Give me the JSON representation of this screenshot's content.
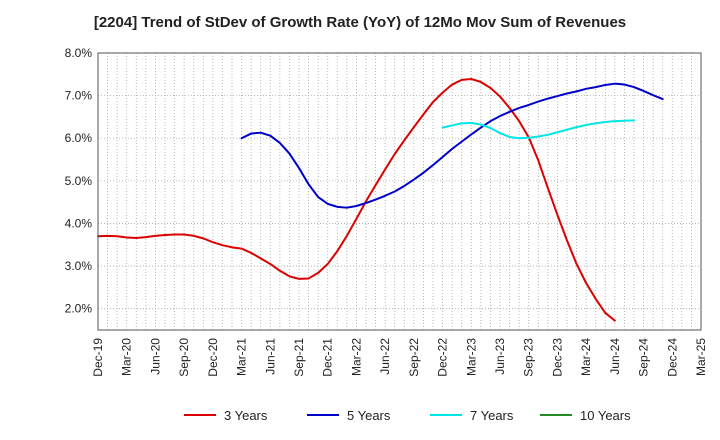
{
  "chart_data": {
    "type": "line",
    "title": "[2204]  Trend of StDev of Growth Rate (YoY) of 12Mo Mov Sum of Revenues",
    "xlabel": "",
    "ylabel": "",
    "ylim": [
      1.5,
      8.0
    ],
    "y_ticks": [
      2.0,
      3.0,
      4.0,
      5.0,
      6.0,
      7.0,
      8.0
    ],
    "y_tick_labels": [
      "2.0%",
      "3.0%",
      "4.0%",
      "5.0%",
      "6.0%",
      "7.0%",
      "8.0%"
    ],
    "x_tick_labels": [
      "Dec-19",
      "Mar-20",
      "Jun-20",
      "Sep-20",
      "Dec-20",
      "Mar-21",
      "Jun-21",
      "Sep-21",
      "Dec-21",
      "Mar-22",
      "Jun-22",
      "Sep-22",
      "Dec-22",
      "Mar-23",
      "Jun-23",
      "Sep-23",
      "Dec-23",
      "Mar-24",
      "Jun-24",
      "Sep-24",
      "Dec-24",
      "Mar-25"
    ],
    "grid": true,
    "legend_position": "bottom",
    "series": [
      {
        "name": "3 Years",
        "color": "#dd0000",
        "start_index": 0,
        "values": [
          3.7,
          3.71,
          3.7,
          3.67,
          3.66,
          3.68,
          3.71,
          3.73,
          3.74,
          3.74,
          3.71,
          3.65,
          3.56,
          3.49,
          3.44,
          3.41,
          3.31,
          3.18,
          3.05,
          2.89,
          2.76,
          2.7,
          2.71,
          2.84,
          3.05,
          3.35,
          3.71,
          4.11,
          4.52,
          4.9,
          5.27,
          5.63,
          5.95,
          6.26,
          6.56,
          6.85,
          7.07,
          7.26,
          7.37,
          7.39,
          7.32,
          7.18,
          6.98,
          6.71,
          6.4,
          6.02,
          5.48,
          4.83,
          4.2,
          3.6,
          3.05,
          2.6,
          2.23,
          1.9,
          1.72
        ]
      },
      {
        "name": "5 Years",
        "color": "#0000cc",
        "start_index": 15,
        "values": [
          6.0,
          6.11,
          6.13,
          6.06,
          5.89,
          5.64,
          5.3,
          4.92,
          4.62,
          4.46,
          4.39,
          4.37,
          4.41,
          4.48,
          4.56,
          4.65,
          4.75,
          4.88,
          5.03,
          5.19,
          5.37,
          5.56,
          5.75,
          5.92,
          6.09,
          6.25,
          6.4,
          6.52,
          6.62,
          6.71,
          6.78,
          6.86,
          6.93,
          6.99,
          7.05,
          7.1,
          7.16,
          7.2,
          7.25,
          7.28,
          7.26,
          7.2,
          7.11,
          7.01,
          6.92
        ]
      },
      {
        "name": "7 Years",
        "color": "#00e5e5",
        "start_index": 36,
        "values": [
          6.25,
          6.3,
          6.35,
          6.36,
          6.32,
          6.24,
          6.12,
          6.03,
          6.0,
          6.01,
          6.04,
          6.08,
          6.14,
          6.2,
          6.26,
          6.31,
          6.35,
          6.38,
          6.4,
          6.41,
          6.42
        ]
      },
      {
        "name": "10 Years",
        "color": "#228b22",
        "start_index": 0,
        "values": []
      }
    ]
  }
}
